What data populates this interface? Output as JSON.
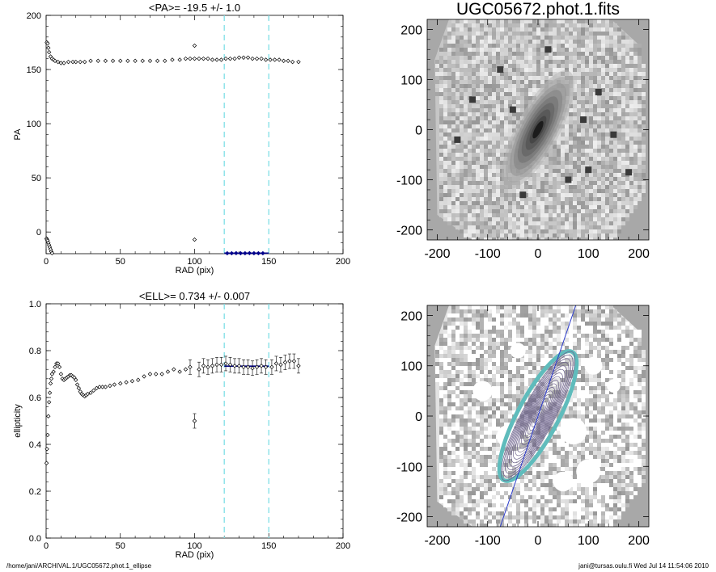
{
  "footer": {
    "left": "/home/jani/ARCHIVAL.1/UGC05672.phot.1_ellipse",
    "right": "jani@tursas.oulu.fi  Wed Jul 14 11:54:06 2010"
  },
  "colors": {
    "data": "#000000",
    "fit": "#00008b",
    "range_lines": "#7fdfe6",
    "ellipse": "#6a5f8a",
    "ellipse_outer": "#5fbcbc",
    "pa_line": "#2b3bcc"
  },
  "chart_data": [
    {
      "type": "scatter",
      "title": "<PA>= -19.5 +/-   1.0",
      "xlabel": "RAD (pix)",
      "ylabel": "PA",
      "xlim": [
        0,
        200
      ],
      "ylim": [
        -20,
        200
      ],
      "xticks": [
        "0",
        "50",
        "100",
        "150",
        "200"
      ],
      "yticks": [
        "0",
        "50",
        "100",
        "150",
        "200"
      ],
      "vlines": [
        120,
        150
      ],
      "series": [
        {
          "x": [
            0.5,
            1,
            1.5,
            2,
            3,
            4,
            5,
            6,
            8,
            10,
            12,
            15,
            18,
            20,
            23,
            26,
            30,
            35,
            40,
            45,
            50,
            55,
            60,
            65,
            70,
            75,
            80,
            85,
            90,
            94,
            97,
            100,
            103,
            106,
            109,
            112,
            115,
            118,
            121,
            124,
            127,
            130,
            133,
            136,
            139,
            142,
            145,
            148,
            151,
            154,
            157,
            160,
            163,
            166,
            170
          ],
          "y": [
            175,
            174,
            170,
            166,
            162,
            160,
            159,
            158,
            157,
            156,
            156,
            157,
            157,
            157,
            157,
            157,
            158,
            158,
            158,
            158,
            158,
            158,
            158,
            158,
            158,
            158,
            158,
            159,
            159,
            160,
            160,
            160,
            160,
            160,
            160,
            159,
            159,
            159,
            160,
            160,
            160,
            161,
            161,
            161,
            160,
            160,
            160,
            159,
            159,
            159,
            159,
            158,
            158,
            157,
            157
          ]
        },
        {
          "x": [
            0.3,
            0.6,
            1,
            1.5,
            2,
            2.5,
            3,
            3.5,
            4
          ],
          "y": [
            -6,
            -7,
            -8,
            -10,
            -12,
            -14,
            -16,
            -18,
            -19.5
          ]
        },
        {
          "x": [
            100,
            100
          ],
          "y": [
            172,
            -7
          ]
        },
        {
          "x": [
            122,
            125,
            128,
            131,
            134,
            137,
            140,
            143,
            146
          ],
          "y": [
            -19.6,
            -19.6,
            -19.5,
            -19.6,
            -19.6,
            -19.5,
            -19.6,
            -19.6,
            -19.6
          ]
        }
      ],
      "fit": {
        "x": [
          120,
          150
        ],
        "y": -19.5
      }
    },
    {
      "type": "scatter",
      "title": "<ELL>= 0.734 +/-  0.007",
      "xlabel": "RAD (pix)",
      "ylabel": "ellipticity",
      "xlim": [
        0,
        200
      ],
      "ylim": [
        0.0,
        1.0
      ],
      "xticks": [
        "0",
        "50",
        "100",
        "150",
        "200"
      ],
      "yticks": [
        "0.0",
        "0.2",
        "0.4",
        "0.6",
        "0.8",
        "1.0"
      ],
      "vlines": [
        120,
        150
      ],
      "series": [
        {
          "x": [
            0.3,
            0.6,
            1,
            1.5,
            2,
            2.5,
            3,
            3.5,
            4,
            5,
            6,
            7,
            8,
            9,
            10,
            11,
            12,
            13,
            14,
            15,
            16,
            17,
            18,
            19,
            20,
            21,
            22,
            23,
            24,
            25,
            26,
            27,
            28,
            30,
            32,
            34,
            36,
            38,
            40,
            43,
            46,
            50,
            54,
            58,
            62,
            66,
            70,
            74,
            78,
            82,
            86,
            90,
            94,
            97,
            103,
            106,
            109,
            112,
            115,
            118,
            121,
            124,
            127,
            130,
            133,
            136,
            139,
            142,
            145,
            148,
            152,
            155,
            158,
            161,
            164,
            167,
            170
          ],
          "y": [
            0.32,
            0.38,
            0.44,
            0.52,
            0.58,
            0.62,
            0.66,
            0.68,
            0.7,
            0.71,
            0.73,
            0.745,
            0.745,
            0.73,
            0.7,
            0.68,
            0.675,
            0.68,
            0.685,
            0.69,
            0.695,
            0.695,
            0.69,
            0.685,
            0.675,
            0.655,
            0.64,
            0.625,
            0.615,
            0.61,
            0.605,
            0.61,
            0.615,
            0.62,
            0.63,
            0.64,
            0.645,
            0.645,
            0.645,
            0.65,
            0.655,
            0.66,
            0.665,
            0.67,
            0.675,
            0.69,
            0.7,
            0.7,
            0.7,
            0.71,
            0.72,
            0.71,
            0.72,
            0.73,
            0.72,
            0.735,
            0.73,
            0.735,
            0.74,
            0.74,
            0.745,
            0.74,
            0.735,
            0.735,
            0.73,
            0.73,
            0.725,
            0.73,
            0.735,
            0.73,
            0.73,
            0.745,
            0.74,
            0.75,
            0.755,
            0.755,
            0.735
          ]
        },
        {
          "x": [
            100
          ],
          "y": [
            0.5
          ]
        }
      ],
      "fit": {
        "x": [
          120,
          150
        ],
        "y": 0.734
      }
    },
    {
      "type": "heatmap",
      "title": "UGC05672.phot.1.fits",
      "xlim": [
        -220,
        220
      ],
      "ylim": [
        -220,
        220
      ],
      "xticks": [
        "-200",
        "-100",
        "0",
        "100",
        "200"
      ],
      "yticks": [
        "-200",
        "-100",
        "0",
        "100",
        "200"
      ]
    },
    {
      "type": "heatmap",
      "title": "",
      "xlim": [
        -220,
        220
      ],
      "ylim": [
        -220,
        220
      ],
      "xticks": [
        "-200",
        "-100",
        "0",
        "100",
        "200"
      ],
      "yticks": [
        "-200",
        "-100",
        "0",
        "100",
        "200"
      ],
      "pa_line": {
        "x1": -75,
        "y1": -220,
        "x2": 75,
        "y2": 220
      }
    }
  ]
}
